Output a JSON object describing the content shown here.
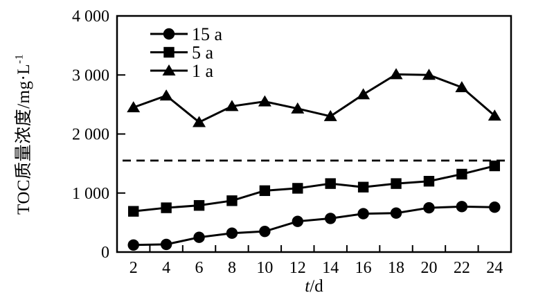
{
  "figure": {
    "background_color": "#ffffff",
    "axis_color": "#000000",
    "series_color": "#000000"
  },
  "chart_data": {
    "type": "line",
    "title": "",
    "xlabel": "t/d",
    "ylabel": "TOC质量浓度/mg·L⁻¹",
    "xlabel_parts": {
      "var": "t",
      "rest": "/d"
    },
    "ylabel_parts": {
      "main": "TOC质量浓度/mg·L",
      "sup": "-1"
    },
    "x": [
      2,
      4,
      6,
      8,
      10,
      12,
      14,
      16,
      18,
      20,
      22,
      24
    ],
    "xlim": [
      1,
      25
    ],
    "ylim": [
      0,
      4000
    ],
    "grid": false,
    "y_tick_values": [
      0,
      1000,
      2000,
      3000,
      4000
    ],
    "y_tick_labels": [
      "0",
      "1 000",
      "2 000",
      "3 000",
      "4 000"
    ],
    "x_tick_labels": [
      "2",
      "4",
      "6",
      "8",
      "10",
      "12",
      "14",
      "16",
      "18",
      "20",
      "22",
      "24"
    ],
    "x_minor_tick_positions": [
      3,
      5,
      7,
      9,
      11,
      13,
      15,
      17,
      19,
      21,
      23
    ],
    "series": [
      {
        "name": "15 a",
        "marker": "circle",
        "values": [
          120,
          130,
          250,
          320,
          350,
          520,
          570,
          650,
          660,
          750,
          770,
          760
        ]
      },
      {
        "name": "5 a",
        "marker": "square",
        "values": [
          690,
          750,
          790,
          870,
          1040,
          1080,
          1160,
          1100,
          1160,
          1200,
          1320,
          1460
        ]
      },
      {
        "name": "1 a",
        "marker": "triangle",
        "values": [
          2450,
          2650,
          2200,
          2470,
          2550,
          2430,
          2300,
          2670,
          3010,
          3000,
          2790,
          2310
        ]
      }
    ],
    "reference_line": {
      "value": 1550,
      "style": "dashed",
      "color": "#000000"
    },
    "legend": {
      "position": "upper-left",
      "entries": [
        "15 a",
        "5 a",
        "1 a"
      ]
    }
  }
}
